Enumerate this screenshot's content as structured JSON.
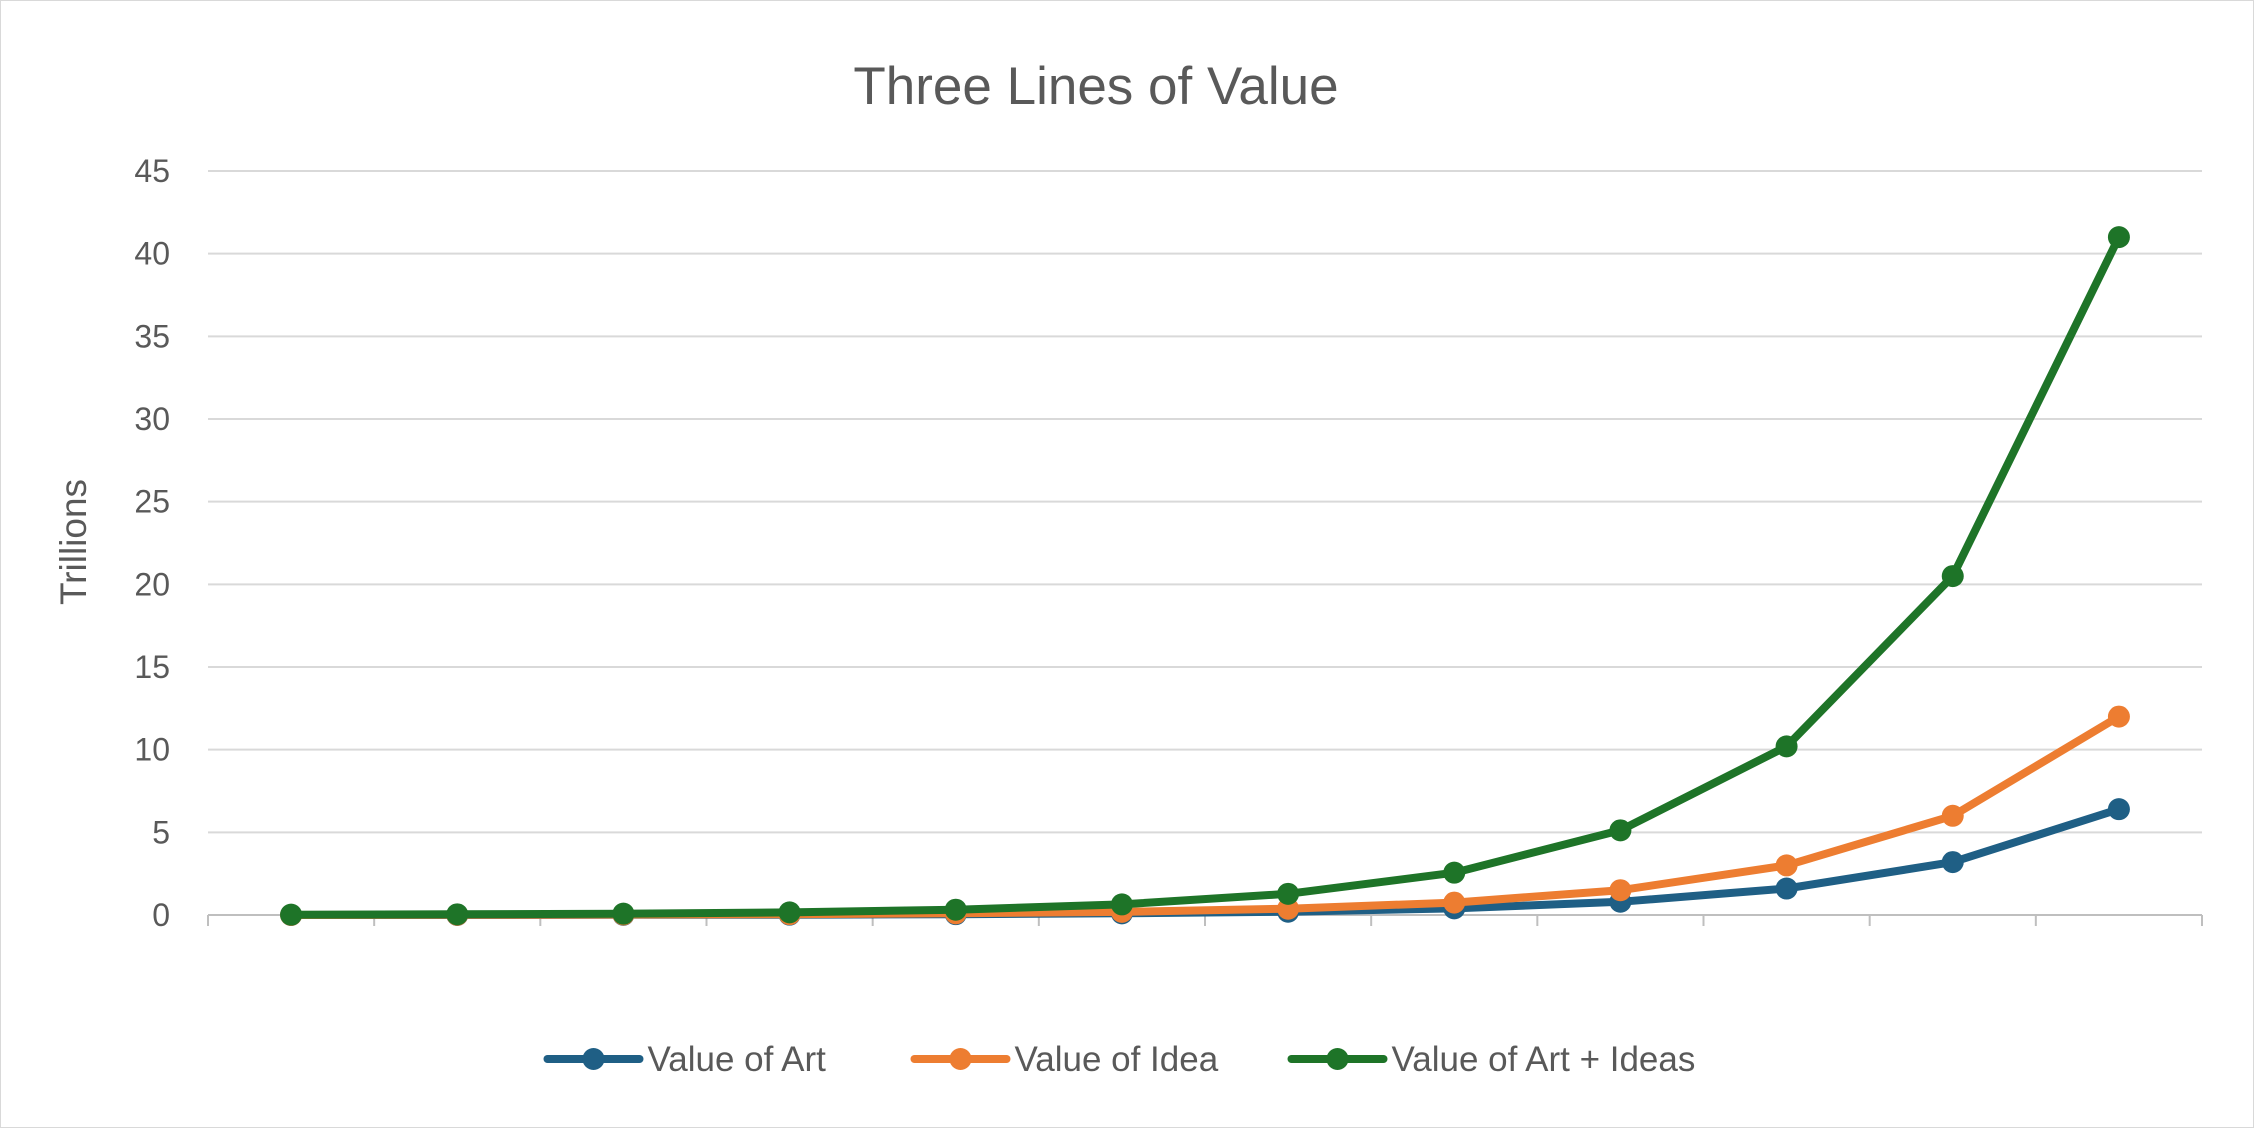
{
  "chart_data": {
    "type": "line",
    "title": "Three Lines of Value",
    "xlabel": "",
    "ylabel": "Trillions",
    "ylim": [
      0,
      45
    ],
    "yticks": [
      "0",
      "5",
      "10",
      "15",
      "20",
      "25",
      "30",
      "35",
      "40",
      "45"
    ],
    "x": [
      1,
      2,
      3,
      4,
      5,
      6,
      7,
      8,
      9,
      10,
      11,
      12
    ],
    "grid": true,
    "legend_position": "bottom",
    "series": [
      {
        "name": "Value of Art",
        "color": "#1f5f85",
        "values": [
          0.0,
          0.0,
          0.01,
          0.02,
          0.05,
          0.1,
          0.2,
          0.4,
          0.8,
          1.6,
          3.2,
          6.4
        ]
      },
      {
        "name": "Value of Idea",
        "color": "#ed7d31",
        "values": [
          0.0,
          0.01,
          0.03,
          0.05,
          0.1,
          0.19,
          0.38,
          0.75,
          1.5,
          3.0,
          6.0,
          12.0
        ]
      },
      {
        "name": "Value of Art + Ideas",
        "color": "#1e7428",
        "values": [
          0.02,
          0.04,
          0.08,
          0.16,
          0.32,
          0.64,
          1.28,
          2.56,
          5.12,
          10.2,
          20.5,
          41.0
        ]
      }
    ]
  }
}
